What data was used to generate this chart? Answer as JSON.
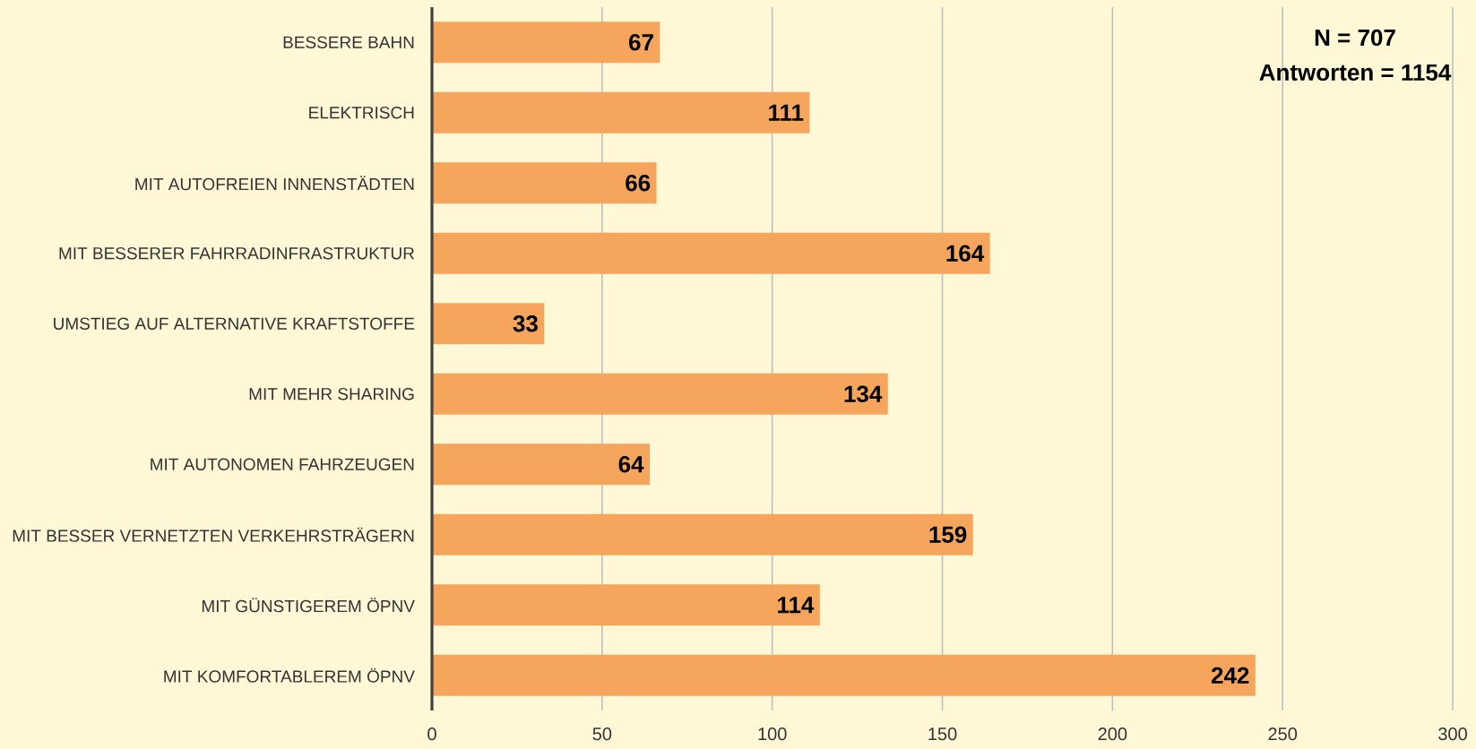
{
  "chart_data": {
    "type": "bar",
    "orientation": "horizontal",
    "categories": [
      "BESSERE BAHN",
      "ELEKTRISCH",
      "MIT AUTOFREIEN INNENSTÄDTEN",
      "MIT BESSERER FAHRRADINFRASTRUKTUR",
      "UMSTIEG AUF ALTERNATIVE KRAFTSTOFFE",
      "MIT MEHR SHARING",
      "MIT AUTONOMEN FAHRZEUGEN",
      "MIT BESSER VERNETZTEN VERKEHRSTRÄGERN",
      "MIT GÜNSTIGEREM ÖPNV",
      "MIT KOMFORTABLEREM ÖPNV"
    ],
    "values": [
      67,
      111,
      66,
      164,
      33,
      134,
      64,
      159,
      114,
      242
    ],
    "color": "#f6a55c",
    "xlim": [
      0,
      300
    ],
    "xticks": [
      0,
      50,
      100,
      150,
      200,
      250,
      300
    ],
    "grid": "x",
    "data_labels": true,
    "annotations": [
      "N = 707",
      "Antworten = 1154"
    ]
  }
}
